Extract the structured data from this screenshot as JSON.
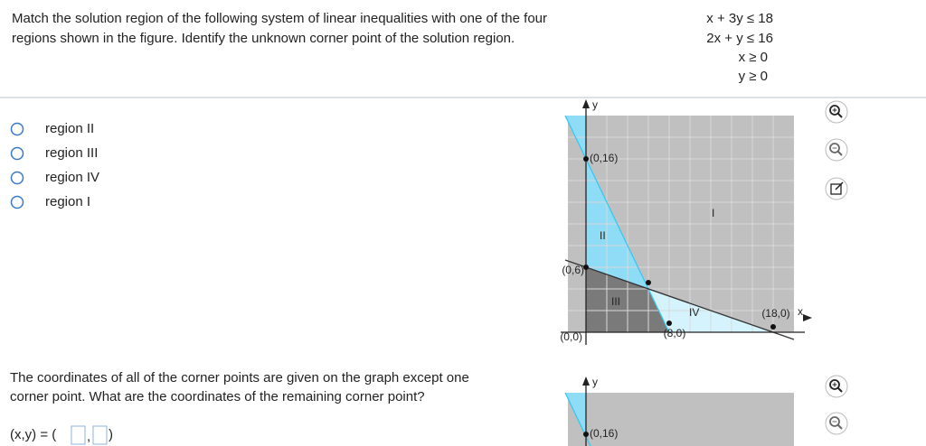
{
  "question1": {
    "lines": [
      "Match the solution region of the following system of linear inequalities with one of the four",
      "regions shown in the figure. Identify the unknown corner point of the solution region."
    ]
  },
  "inequalities": [
    "x + 3y ≤ 18",
    "2x + y ≤ 16",
    "x ≥ 0",
    "y ≥ 0"
  ],
  "options": [
    "region II",
    "region III",
    "region IV",
    "region I"
  ],
  "graph1": {
    "axis_labels": {
      "x": "x",
      "y": "y"
    },
    "region_labels": [
      "I",
      "II",
      "III",
      "IV"
    ],
    "point_labels": [
      "(0,16)",
      "(0,6)",
      "(0,0)",
      "(8,0)",
      "(18,0)"
    ]
  },
  "question2": {
    "lines": [
      "The coordinates of all of the corner points are given on the graph except one",
      "corner point. What are the coordinates of the remaining corner point?"
    ],
    "answer_prefix": "(x,y) = (",
    "answer_separator": ",",
    "answer_suffix": ")"
  },
  "graph2": {
    "y_label": "y",
    "point_label": "(0,16)"
  }
}
